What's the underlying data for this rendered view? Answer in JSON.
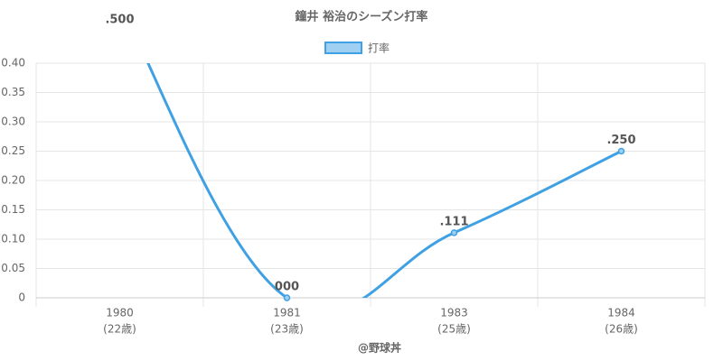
{
  "chart_data": {
    "type": "line",
    "title": "鐘井 裕治のシーズン打率",
    "categories": [
      "1980",
      "1981",
      "1983",
      "1984"
    ],
    "category_sublabels": [
      "(22歳)",
      "(23歳)",
      "(25歳)",
      "(26歳)"
    ],
    "x_label": "@野球丼",
    "series": [
      {
        "name": "打率",
        "color": "#3fa0e3",
        "values": [
          0.5,
          0,
          0.111,
          0.25
        ],
        "value_labels": [
          ".500",
          "000",
          ".111",
          ".250"
        ]
      }
    ],
    "ylim": [
      0,
      0.4
    ],
    "yticks": [
      0,
      0.05,
      {
        "value": 0.1,
        "label": "0.10"
      },
      0.15,
      {
        "value": 0.2,
        "label": "0.20"
      },
      0.25,
      {
        "value": 0.3,
        "label": "0.30"
      },
      0.35,
      {
        "value": 0.4,
        "label": "0.40"
      }
    ],
    "grid": true,
    "legend": "top"
  }
}
